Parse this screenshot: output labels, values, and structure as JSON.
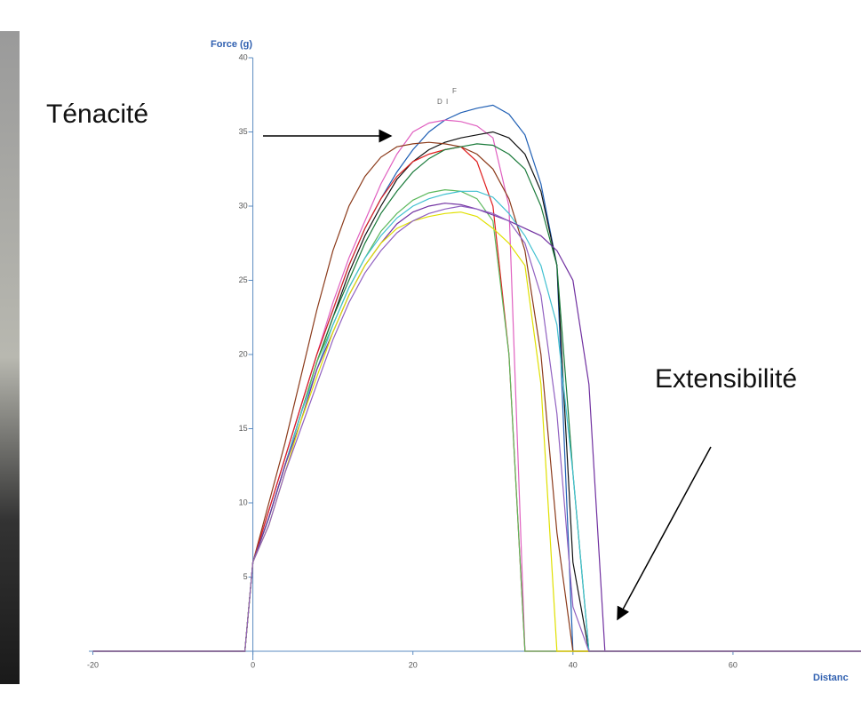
{
  "chart_data": {
    "type": "line",
    "ylabel": "Force (g)",
    "xlabel": "Distanc",
    "annotations": [
      "Ténacité",
      "Extensibilité"
    ],
    "markers": [
      "D",
      "I",
      "F"
    ],
    "xlim": [
      -20.5,
      76
    ],
    "ylim": [
      0,
      40
    ],
    "xticks": [
      -20,
      0,
      20,
      40,
      60
    ],
    "yticks": [
      5,
      10,
      15,
      20,
      25,
      30,
      35,
      40
    ],
    "x": [
      -20,
      -1,
      0,
      2,
      4,
      6,
      8,
      10,
      12,
      14,
      16,
      18,
      20,
      22,
      24,
      26,
      28,
      30,
      32,
      34,
      36,
      38,
      40,
      42,
      44,
      46,
      76
    ],
    "series": [
      {
        "name": null,
        "color": "#1f5fb4",
        "values": [
          0,
          0,
          6,
          9.5,
          13,
          16.5,
          20,
          23,
          26,
          28.5,
          30.5,
          32.3,
          33.8,
          35,
          35.8,
          36.3,
          36.6,
          36.8,
          36.2,
          34.8,
          31.5,
          26,
          0,
          0,
          0,
          0,
          0
        ]
      },
      {
        "name": null,
        "color": "#e060c0",
        "values": [
          0,
          0,
          6,
          9.5,
          13,
          16.5,
          20,
          23.5,
          26.5,
          29,
          31.5,
          33.5,
          35,
          35.6,
          35.8,
          35.7,
          35.4,
          34.6,
          30,
          0,
          0,
          0,
          0,
          0,
          0,
          0,
          0
        ]
      },
      {
        "name": null,
        "color": "#111111",
        "values": [
          0,
          0,
          6,
          9,
          12.5,
          16,
          19.5,
          22.5,
          25.5,
          28,
          30,
          31.8,
          33,
          33.8,
          34.3,
          34.6,
          34.8,
          35,
          34.6,
          33.5,
          31,
          26,
          6,
          0,
          0,
          0,
          0
        ]
      },
      {
        "name": null,
        "color": "#8b3a1a",
        "values": [
          0,
          0,
          6,
          10,
          14,
          18.5,
          23,
          27,
          30,
          32,
          33.3,
          34,
          34.2,
          34.3,
          34.2,
          34,
          33.5,
          32.5,
          30.5,
          27,
          20,
          8,
          0,
          0,
          0,
          0,
          0
        ]
      },
      {
        "name": null,
        "color": "#e02020",
        "values": [
          0,
          0,
          6,
          9.5,
          13,
          16.5,
          20,
          23,
          26,
          28.5,
          30.5,
          32,
          33,
          33.5,
          33.8,
          34,
          33,
          30,
          20,
          0,
          0,
          0,
          0,
          0,
          0,
          0,
          0
        ]
      },
      {
        "name": null,
        "color": "#1a7a3a",
        "values": [
          0,
          0,
          6,
          9,
          12.5,
          16,
          19.5,
          22.5,
          25,
          27.5,
          29.5,
          31,
          32.3,
          33.2,
          33.8,
          34,
          34.2,
          34.1,
          33.5,
          32.5,
          30,
          26,
          12,
          0,
          0,
          0,
          0
        ]
      },
      {
        "name": null,
        "color": "#5cb85c",
        "values": [
          0,
          0,
          6,
          9,
          12.5,
          16,
          19.5,
          22,
          24.5,
          26.5,
          28.3,
          29.5,
          30.4,
          30.9,
          31.1,
          31,
          30.5,
          29,
          20,
          0,
          0,
          0,
          0,
          0,
          0,
          0,
          0
        ]
      },
      {
        "name": null,
        "color": "#40c0d0",
        "values": [
          0,
          0,
          6,
          9,
          12.5,
          16,
          19,
          22,
          24.5,
          26.5,
          28,
          29.2,
          30,
          30.5,
          30.8,
          31,
          31,
          30.6,
          29.5,
          28,
          26,
          22,
          12,
          0,
          0,
          0,
          0
        ]
      },
      {
        "name": null,
        "color": "#7030a0",
        "values": [
          0,
          0,
          6,
          9,
          12.5,
          15.5,
          19,
          21.5,
          24,
          26,
          27.5,
          28.8,
          29.6,
          30,
          30.2,
          30.1,
          29.8,
          29.4,
          29,
          28.5,
          28,
          27,
          25,
          18,
          0,
          0,
          0
        ]
      },
      {
        "name": null,
        "color": "#e0e000",
        "values": [
          0,
          0,
          6,
          8.5,
          12,
          15.5,
          18.5,
          21.5,
          24,
          26,
          27.5,
          28.5,
          29,
          29.3,
          29.5,
          29.6,
          29.3,
          28.5,
          27.5,
          26,
          18,
          0,
          0,
          0,
          0,
          0,
          0
        ]
      },
      {
        "name": null,
        "color": "#9060c0",
        "values": [
          0,
          0,
          6,
          8.5,
          12,
          15,
          18,
          21,
          23.5,
          25.5,
          27,
          28.2,
          29,
          29.5,
          29.8,
          30,
          29.8,
          29.5,
          29,
          27.5,
          24,
          16,
          3,
          0,
          0,
          0,
          0
        ]
      }
    ]
  }
}
